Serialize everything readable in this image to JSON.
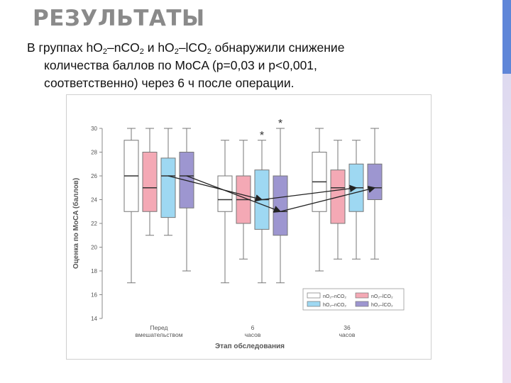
{
  "slide": {
    "title": "РЕЗУЛЬТАТЫ",
    "body": {
      "line1_part1": "В группах hO",
      "sub2": "2",
      "line1_part2": "–nCO",
      "line1_part3": " и hO",
      "line1_part4": "–lCO",
      "line1_part5": " обнаружили снижение",
      "line2": "количества баллов по MoCA (p=0,03 и p<0,001,",
      "line3": "соответственно) через 6 ч после операции."
    }
  },
  "colors": {
    "hO2_nCO2": "#ffffff",
    "nO2_lCO2": "#f4a9b5",
    "hO2_lCO2_light": "#9ed8f2",
    "hO2_lCO2_dark": "#9d96d0",
    "accent_side": "#5f86d8"
  },
  "chart_data": {
    "type": "boxplot",
    "ylabel": "Оценка по MoCA (баллов)",
    "xlabel": "Этап обследования",
    "ylim": [
      14,
      30
    ],
    "yticks": [
      14,
      16,
      18,
      20,
      22,
      24,
      26,
      28,
      30
    ],
    "grid": false,
    "legend_position": "bottom-right",
    "categories": [
      "Перед вмешательством",
      "6 часов",
      "36 часов"
    ],
    "series": [
      {
        "name": "nO₂–nCO₂",
        "color": "#ffffff",
        "boxes": [
          {
            "min": 17,
            "q1": 23,
            "median": 26,
            "q3": 29,
            "max": 30
          },
          {
            "min": 17,
            "q1": 23,
            "median": 24,
            "q3": 26,
            "max": 29
          },
          {
            "min": 18,
            "q1": 23,
            "median": 25.5,
            "q3": 28,
            "max": 30
          }
        ]
      },
      {
        "name": "nO₂–lCO₂",
        "color": "#f4a9b5",
        "boxes": [
          {
            "min": 21,
            "q1": 23,
            "median": 25,
            "q3": 28,
            "max": 30
          },
          {
            "min": 19,
            "q1": 22,
            "median": 24,
            "q3": 26,
            "max": 29
          },
          {
            "min": 19,
            "q1": 22,
            "median": 25,
            "q3": 26.5,
            "max": 29
          }
        ]
      },
      {
        "name": "hO₂–nCO₂",
        "color": "#9ed8f2",
        "boxes": [
          {
            "min": 21,
            "q1": 22.5,
            "median": 26,
            "q3": 27.5,
            "max": 30
          },
          {
            "min": 17,
            "q1": 21.5,
            "median": 24,
            "q3": 26.5,
            "max": 29
          },
          {
            "min": 19,
            "q1": 23,
            "median": 25,
            "q3": 27,
            "max": 29
          }
        ]
      },
      {
        "name": "hO₂–lCO₂",
        "color": "#9d96d0",
        "boxes": [
          {
            "min": 18,
            "q1": 23.3,
            "median": 26,
            "q3": 28,
            "max": 30
          },
          {
            "min": 17,
            "q1": 21,
            "median": 23,
            "q3": 26,
            "max": 30
          },
          {
            "min": 19,
            "q1": 24,
            "median": 25,
            "q3": 27,
            "max": 30
          }
        ]
      }
    ],
    "arrows": [
      {
        "series": 2,
        "from": 0,
        "to": 1
      },
      {
        "series": 2,
        "from": 1,
        "to": 2
      },
      {
        "series": 3,
        "from": 0,
        "to": 1
      },
      {
        "series": 3,
        "from": 1,
        "to": 2
      }
    ],
    "annotations": [
      {
        "text": "*",
        "category": 1,
        "series": 2
      },
      {
        "text": "*",
        "category": 1,
        "series": 3
      }
    ]
  }
}
